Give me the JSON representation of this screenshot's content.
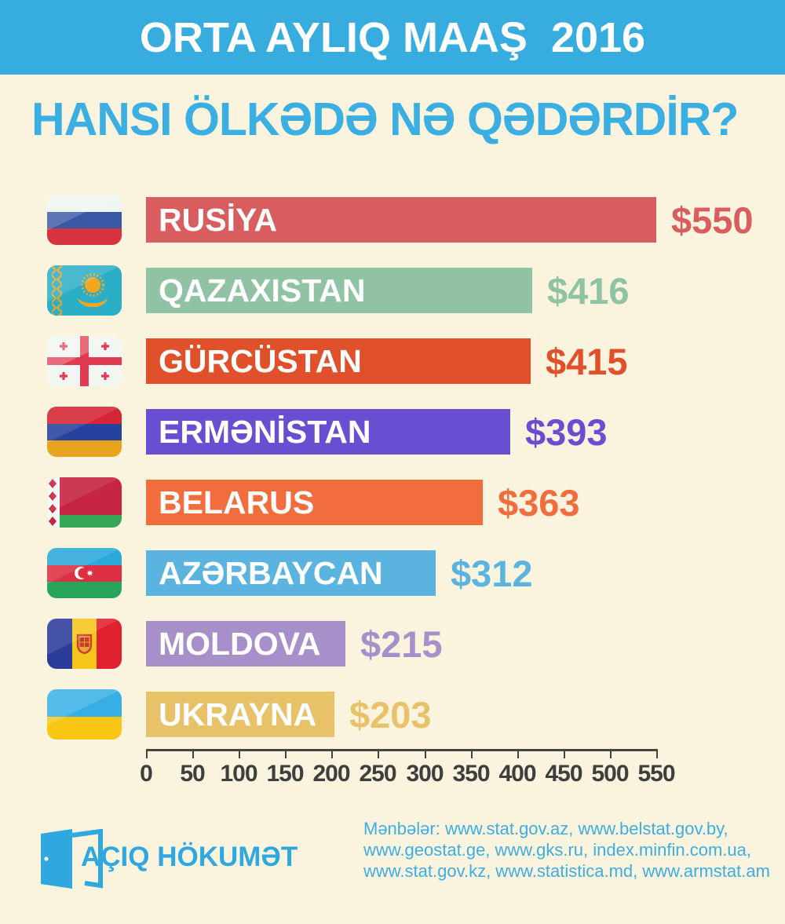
{
  "header": {
    "title": "ORTA AYLIQ MAAŞ  2016"
  },
  "subtitle": "HANSI ÖLKƏDƏ NƏ QƏDƏRDİR?",
  "chart_data": {
    "type": "bar",
    "orientation": "horizontal",
    "title": "ORTA AYLIQ MAAŞ 2016",
    "subtitle": "HANSI ÖLKƏDƏ NƏ QƏDƏRDİR?",
    "unit": "USD per month",
    "xlim": [
      0,
      550
    ],
    "axis_ticks": [
      0,
      50,
      100,
      150,
      200,
      250,
      300,
      350,
      400,
      450,
      500,
      550
    ],
    "grid": false,
    "bars": [
      {
        "label": "RUSİYA",
        "value": 550,
        "display_value": "$550",
        "color": "#D95C5E",
        "flag": "russia"
      },
      {
        "label": "QAZAXISTAN",
        "value": 416,
        "display_value": "$416",
        "color": "#8FC3A3",
        "flag": "kazakhstan"
      },
      {
        "label": "GÜRCÜSTAN",
        "value": 415,
        "display_value": "$415",
        "color": "#E0512B",
        "flag": "georgia"
      },
      {
        "label": "ERMƏNİSTAN",
        "value": 393,
        "display_value": "$393",
        "color": "#6A4ED2",
        "flag": "armenia"
      },
      {
        "label": "BELARUS",
        "value": 363,
        "display_value": "$363",
        "color": "#F26D3E",
        "flag": "belarus"
      },
      {
        "label": "AZƏRBAYCAN",
        "value": 312,
        "display_value": "$312",
        "color": "#5BB4E0",
        "flag": "azerbaijan"
      },
      {
        "label": "MOLDOVA",
        "value": 215,
        "display_value": "$215",
        "color": "#A78FC9",
        "flag": "moldova"
      },
      {
        "label": "UKRAYNA",
        "value": 203,
        "display_value": "$203",
        "color": "#E8C269",
        "flag": "ukraine"
      }
    ]
  },
  "footer": {
    "logo_text": "AÇIQ HÖKUMƏT",
    "sources_lines": [
      "Mənbələr:  www.stat.gov.az, www.belstat.gov.by,",
      "www.geostat.ge, www.gks.ru, index.minfin.com.ua,",
      "www.stat.gov.kz, www.statistica.md, www.armstat.am"
    ]
  },
  "colors": {
    "header_bg": "#37ACDF",
    "background": "#FAF3DE",
    "subtitle_text": "#3BAEE2",
    "footer_text": "#3CAEE3",
    "axis": "#454545"
  }
}
